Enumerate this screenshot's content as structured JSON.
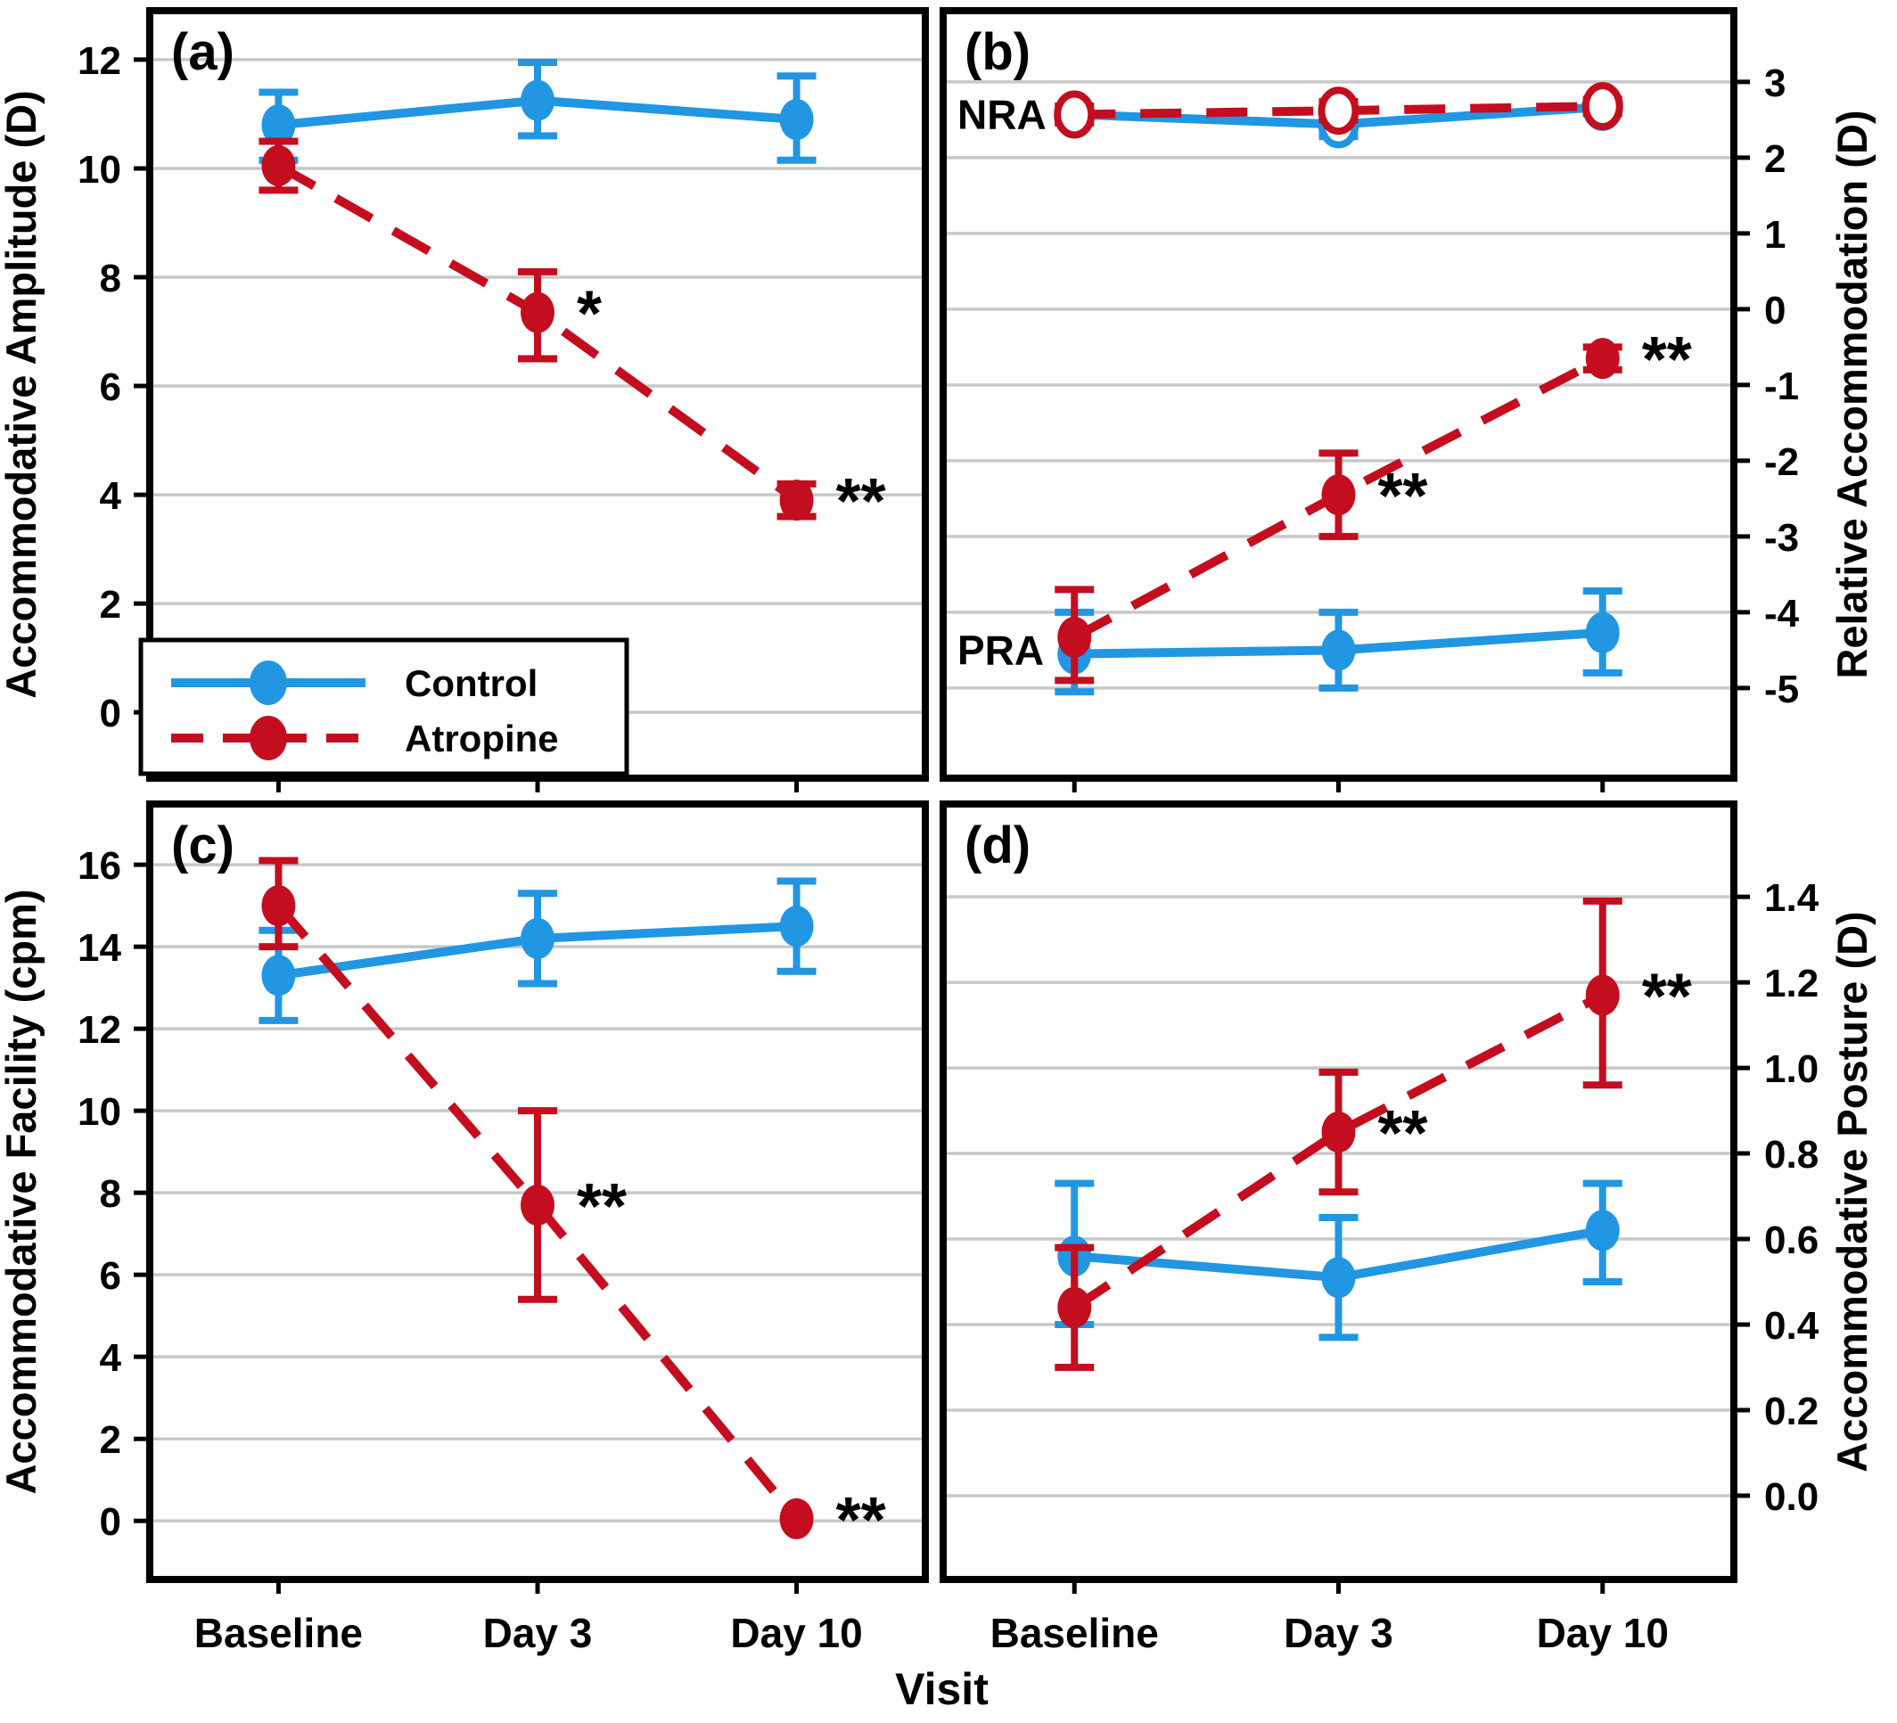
{
  "figure": {
    "xlabel": "Visit",
    "categories": [
      "Baseline",
      "Day 3",
      "Day 10"
    ],
    "colors": {
      "control": "#2196E3",
      "atropine": "#C40D1E",
      "grid": "#C8C8C8",
      "frame": "#000000",
      "background": "#FFFFFF",
      "significance": "#000000"
    },
    "legend": {
      "entries": [
        {
          "label": "Control",
          "group": "control",
          "dashed": false
        },
        {
          "label": "Atropine",
          "group": "atropine",
          "dashed": true
        }
      ]
    }
  },
  "chart_data": [
    {
      "type": "line",
      "id": "a",
      "panel_label": "(a)",
      "ylabel": "Accommodative Amplitude (D)",
      "axis_side": "left",
      "ylim": [
        -1.21,
        12.9
      ],
      "yticks": [
        0,
        2,
        4,
        6,
        8,
        10,
        12
      ],
      "tick_decimals": 0,
      "grid": true,
      "has_legend": true,
      "categories": [
        "Baseline",
        "Day 3",
        "Day 10"
      ],
      "series": [
        {
          "name": "Control",
          "group": "control",
          "dashed": false,
          "marker": "filled",
          "values": [
            10.8,
            11.25,
            10.9
          ],
          "err_lo": [
            10.15,
            10.6,
            10.15
          ],
          "err_hi": [
            11.4,
            11.95,
            11.7
          ],
          "sig": [
            "",
            "",
            ""
          ]
        },
        {
          "name": "Atropine",
          "group": "atropine",
          "dashed": true,
          "marker": "filled",
          "values": [
            10.05,
            7.35,
            3.9
          ],
          "err_lo": [
            9.6,
            6.5,
            3.6
          ],
          "err_hi": [
            10.5,
            8.1,
            4.2
          ],
          "sig": [
            "",
            "*",
            "**"
          ]
        }
      ],
      "annotations": []
    },
    {
      "type": "line",
      "id": "b",
      "panel_label": "(b)",
      "ylabel": "Relative Accommodation (D)",
      "axis_side": "right",
      "ylim": [
        -6.19,
        3.94
      ],
      "yticks": [
        3,
        2,
        1,
        0,
        -1,
        -2,
        -3,
        -4,
        -5
      ],
      "tick_decimals": 0,
      "grid": true,
      "has_legend": false,
      "categories": [
        "Baseline",
        "Day 3",
        "Day 10"
      ],
      "series": [
        {
          "name": "Control NRA",
          "group": "control",
          "dashed": false,
          "marker": "open",
          "values": [
            2.57,
            2.44,
            2.67
          ],
          "err_lo": [
            2.46,
            2.28,
            2.58
          ],
          "err_hi": [
            2.68,
            2.6,
            2.76
          ],
          "sig": [
            "",
            "",
            ""
          ]
        },
        {
          "name": "Atropine NRA",
          "group": "atropine",
          "dashed": true,
          "marker": "open",
          "values": [
            2.57,
            2.62,
            2.68
          ],
          "err_lo": [
            2.46,
            2.5,
            2.59
          ],
          "err_hi": [
            2.68,
            2.74,
            2.77
          ],
          "sig": [
            "",
            "",
            ""
          ]
        },
        {
          "name": "Control PRA",
          "group": "control",
          "dashed": false,
          "marker": "filled",
          "values": [
            -4.55,
            -4.5,
            -4.27
          ],
          "err_lo": [
            -5.05,
            -5.0,
            -4.8
          ],
          "err_hi": [
            -4.0,
            -4.0,
            -3.72
          ],
          "sig": [
            "",
            "",
            ""
          ]
        },
        {
          "name": "Atropine PRA",
          "group": "atropine",
          "dashed": true,
          "marker": "filled",
          "values": [
            -4.33,
            -2.45,
            -0.65
          ],
          "err_lo": [
            -4.9,
            -3.0,
            -0.8
          ],
          "err_hi": [
            -3.7,
            -1.9,
            -0.5
          ],
          "sig": [
            "",
            "**",
            "**"
          ]
        }
      ],
      "annotations": [
        {
          "text": "NRA",
          "value": 2.57
        },
        {
          "text": "PRA",
          "value": -4.5
        }
      ]
    },
    {
      "type": "line",
      "id": "c",
      "panel_label": "(c)",
      "ylabel": "Accommodative Facility (cpm)",
      "axis_side": "left",
      "ylim": [
        -1.43,
        17.48
      ],
      "yticks": [
        0,
        2,
        4,
        6,
        8,
        10,
        12,
        14,
        16
      ],
      "tick_decimals": 0,
      "grid": true,
      "has_legend": false,
      "categories": [
        "Baseline",
        "Day 3",
        "Day 10"
      ],
      "series": [
        {
          "name": "Control",
          "group": "control",
          "dashed": false,
          "marker": "filled",
          "values": [
            13.3,
            14.2,
            14.5
          ],
          "err_lo": [
            12.2,
            13.1,
            13.4
          ],
          "err_hi": [
            14.4,
            15.3,
            15.6
          ],
          "sig": [
            "",
            "",
            ""
          ]
        },
        {
          "name": "Atropine",
          "group": "atropine",
          "dashed": true,
          "marker": "filled",
          "values": [
            15.0,
            7.7,
            0.05
          ],
          "err_lo": [
            14.0,
            5.4,
            0.05
          ],
          "err_hi": [
            16.1,
            10.0,
            0.05
          ],
          "sig": [
            "",
            "**",
            "**"
          ]
        }
      ],
      "annotations": []
    },
    {
      "type": "line",
      "id": "d",
      "panel_label": "(d)",
      "ylabel": "Accommodative Posture (D)",
      "axis_side": "right",
      "ylim": [
        -0.196,
        1.617
      ],
      "yticks": [
        0.0,
        0.2,
        0.4,
        0.6,
        0.8,
        1.0,
        1.2,
        1.4
      ],
      "tick_decimals": 1,
      "grid": true,
      "has_legend": false,
      "categories": [
        "Baseline",
        "Day 3",
        "Day 10"
      ],
      "series": [
        {
          "name": "Control",
          "group": "control",
          "dashed": false,
          "marker": "filled",
          "values": [
            0.56,
            0.51,
            0.62
          ],
          "err_lo": [
            0.4,
            0.37,
            0.5
          ],
          "err_hi": [
            0.73,
            0.65,
            0.73
          ],
          "sig": [
            "",
            "",
            ""
          ]
        },
        {
          "name": "Atropine",
          "group": "atropine",
          "dashed": true,
          "marker": "filled",
          "values": [
            0.44,
            0.85,
            1.17
          ],
          "err_lo": [
            0.3,
            0.71,
            0.96
          ],
          "err_hi": [
            0.58,
            0.99,
            1.39
          ],
          "sig": [
            "",
            "**",
            "**"
          ]
        }
      ],
      "annotations": []
    }
  ]
}
